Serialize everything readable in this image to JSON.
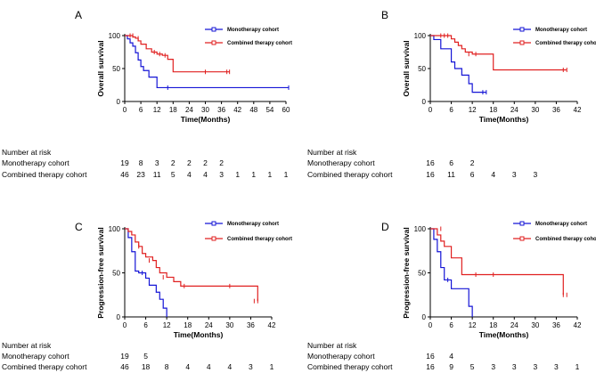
{
  "chart_data": [
    {
      "type": "line",
      "panel": "A",
      "xlabel": "Time(Months)",
      "ylabel": "Overall survival",
      "xlim": [
        0,
        60
      ],
      "ylim": [
        0,
        100
      ],
      "xticks": [
        0,
        6,
        12,
        18,
        24,
        30,
        36,
        42,
        48,
        54,
        60
      ],
      "yticks": [
        0,
        50,
        100
      ],
      "legend": "top-right",
      "series": [
        {
          "name": "Monotherapy cohort",
          "color": "#1515d6",
          "x": [
            0,
            1,
            2,
            3,
            4,
            5,
            6,
            7,
            9,
            12,
            61
          ],
          "y": [
            100,
            95,
            89,
            84,
            74,
            63,
            53,
            47,
            37,
            21,
            21
          ],
          "censor_x": [
            16,
            61
          ],
          "censor_y": [
            21,
            21
          ]
        },
        {
          "name": "Combined therapy cohort",
          "color": "#e02020",
          "x": [
            0,
            3,
            4,
            5,
            6,
            8,
            10,
            12,
            14,
            16,
            18,
            39
          ],
          "y": [
            100,
            98,
            96,
            92,
            87,
            80,
            75,
            72,
            70,
            64,
            45,
            45
          ],
          "censor_x": [
            2,
            3,
            5,
            11,
            13,
            15,
            30,
            38,
            39
          ],
          "censor_y": [
            100,
            100,
            96,
            75,
            72,
            70,
            45,
            45,
            45
          ]
        }
      ],
      "risk_title": "Number at risk",
      "risk_rows": [
        {
          "label": "Monotherapy cohort",
          "values": [
            "19",
            "8",
            "3",
            "2",
            "2",
            "2",
            "2"
          ]
        },
        {
          "label": "Combined therapy cohort",
          "values": [
            "46",
            "23",
            "11",
            "5",
            "4",
            "4",
            "3",
            "1",
            "1",
            "1",
            "1"
          ]
        }
      ]
    },
    {
      "type": "line",
      "panel": "B",
      "xlabel": "Time(Months)",
      "ylabel": "Overall survival",
      "xlim": [
        0,
        42
      ],
      "ylim": [
        0,
        100
      ],
      "xticks": [
        0,
        6,
        12,
        18,
        24,
        30,
        36,
        42
      ],
      "yticks": [
        0,
        50,
        100
      ],
      "legend": "top-right",
      "series": [
        {
          "name": "Monotherapy cohort",
          "color": "#1515d6",
          "x": [
            0,
            1,
            2,
            3,
            5,
            6,
            7,
            9,
            11,
            12,
            16
          ],
          "y": [
            100,
            94,
            94,
            80,
            80,
            60,
            50,
            40,
            27,
            14,
            14
          ],
          "censor_x": [
            15,
            16
          ],
          "censor_y": [
            14,
            14
          ]
        },
        {
          "name": "Combined therapy cohort",
          "color": "#e02020",
          "x": [
            0,
            6,
            7,
            8,
            9,
            10,
            12,
            18,
            39
          ],
          "y": [
            100,
            95,
            90,
            85,
            80,
            75,
            72,
            48,
            48
          ],
          "censor_x": [
            3,
            4,
            5,
            11,
            13,
            38,
            39
          ],
          "censor_y": [
            100,
            100,
            100,
            72,
            72,
            48,
            48
          ]
        }
      ],
      "risk_title": "Number at risk",
      "risk_rows": [
        {
          "label": "Monotherapy cohort",
          "values": [
            "16",
            "6",
            "2"
          ]
        },
        {
          "label": "Combined therapy cohort",
          "values": [
            "16",
            "11",
            "6",
            "4",
            "3",
            "3"
          ]
        }
      ]
    },
    {
      "type": "line",
      "panel": "C",
      "xlabel": "Time(Months)",
      "ylabel": "Progression-free survival",
      "xlim": [
        0,
        42
      ],
      "ylim": [
        0,
        100
      ],
      "xticks": [
        0,
        6,
        12,
        18,
        24,
        30,
        36,
        42
      ],
      "yticks": [
        0,
        50,
        100
      ],
      "legend": "top-right",
      "series": [
        {
          "name": "Monotherapy cohort",
          "color": "#1515d6",
          "x": [
            0,
            1,
            2,
            3,
            4,
            6,
            7,
            9,
            10,
            11,
            12
          ],
          "y": [
            100,
            90,
            74,
            52,
            50,
            44,
            36,
            28,
            20,
            10,
            0
          ],
          "censor_x": [
            5
          ],
          "censor_y": [
            50
          ]
        },
        {
          "name": "Combined therapy cohort",
          "color": "#e02020",
          "x": [
            0,
            1,
            2,
            3,
            4,
            5,
            6,
            8,
            9,
            10,
            12,
            14,
            16,
            36,
            38
          ],
          "y": [
            100,
            97,
            93,
            85,
            80,
            72,
            68,
            64,
            56,
            50,
            45,
            40,
            35,
            35,
            18
          ],
          "censor_x": [
            4,
            7,
            11,
            17,
            30,
            37,
            38
          ],
          "censor_y": [
            80,
            64,
            45,
            35,
            35,
            18,
            18
          ]
        }
      ],
      "risk_title": "Number at risk",
      "risk_rows": [
        {
          "label": "Monotherapy cohort",
          "values": [
            "19",
            "5"
          ]
        },
        {
          "label": "Combined therapy cohort",
          "values": [
            "46",
            "18",
            "8",
            "4",
            "4",
            "4",
            "3",
            "1"
          ]
        }
      ]
    },
    {
      "type": "line",
      "panel": "D",
      "xlabel": "Time(Months)",
      "ylabel": "Progression-free survival",
      "xlim": [
        0,
        42
      ],
      "ylim": [
        0,
        100
      ],
      "xticks": [
        0,
        6,
        12,
        18,
        24,
        30,
        36,
        42
      ],
      "yticks": [
        0,
        50,
        100
      ],
      "legend": "top-right",
      "series": [
        {
          "name": "Monotherapy cohort",
          "color": "#1515d6",
          "x": [
            0,
            1,
            2,
            3,
            4,
            6,
            10,
            11,
            12
          ],
          "y": [
            100,
            88,
            74,
            56,
            42,
            32,
            32,
            12,
            0
          ],
          "censor_x": [
            5
          ],
          "censor_y": [
            42
          ]
        },
        {
          "name": "Combined therapy cohort",
          "color": "#e02020",
          "x": [
            0,
            2,
            3,
            4,
            6,
            9,
            37,
            38
          ],
          "y": [
            100,
            93,
            86,
            80,
            67,
            48,
            48,
            25
          ],
          "censor_x": [
            3,
            13,
            18,
            38,
            39
          ],
          "censor_y": [
            100,
            48,
            48,
            25,
            25
          ]
        }
      ],
      "risk_title": "Number at risk",
      "risk_rows": [
        {
          "label": "Monotherapy cohort",
          "values": [
            "16",
            "4"
          ]
        },
        {
          "label": "Combined therapy cohort",
          "values": [
            "16",
            "9",
            "5",
            "3",
            "3",
            "3",
            "3",
            "1"
          ]
        }
      ]
    }
  ]
}
